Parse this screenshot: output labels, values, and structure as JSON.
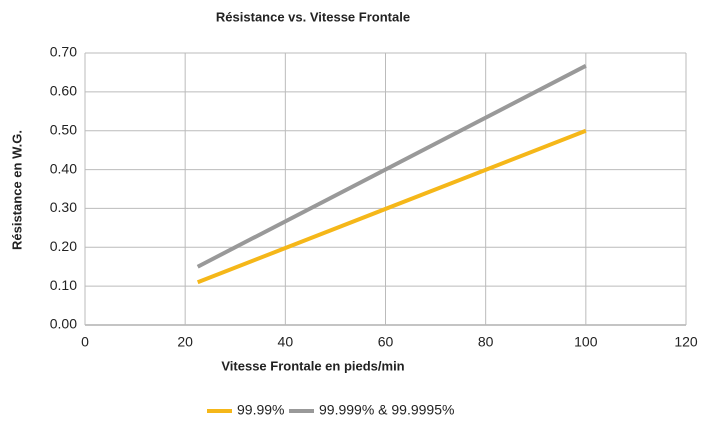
{
  "chart_data": {
    "type": "line",
    "title": "Résistance vs. Vitesse Frontale",
    "x_label": "Vitesse Frontale en pieds/min",
    "y_label": "Résistance en W.G.",
    "x": [
      22.5,
      100
    ],
    "series": [
      {
        "name": "99.99%",
        "color": "#f5b719",
        "values": [
          0.11,
          0.5
        ]
      },
      {
        "name": "99.999% & 99.9995%",
        "color": "#999999",
        "values": [
          0.15,
          0.667
        ]
      }
    ],
    "xlim": [
      0,
      120
    ],
    "xticks": [
      0,
      20,
      40,
      60,
      80,
      100,
      120
    ],
    "ylim": [
      0,
      0.7
    ],
    "yticks": [
      {
        "value": 0,
        "label": "0.00"
      },
      {
        "value": 0.1,
        "label": "0.10"
      },
      {
        "value": 0.2,
        "label": "0.20"
      },
      {
        "value": 0.3,
        "label": "0.30"
      },
      {
        "value": 0.4,
        "label": "0.40"
      },
      {
        "value": 0.5,
        "label": "0.50"
      },
      {
        "value": 0.6,
        "label": "0.60"
      },
      {
        "value": 0.7,
        "label": "0.70"
      }
    ],
    "grid": true,
    "legend": "bottom"
  }
}
